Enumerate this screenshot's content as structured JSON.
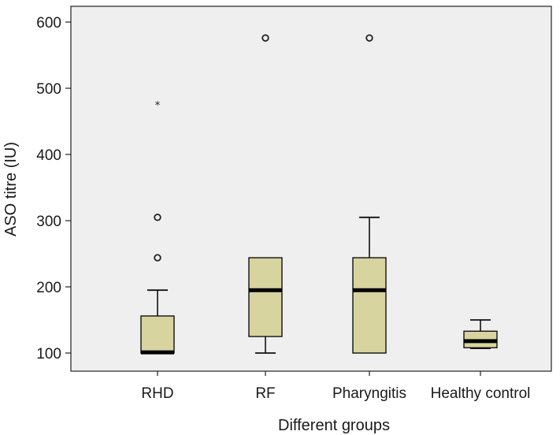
{
  "chart_data": {
    "type": "boxplot",
    "xlabel": "Different groups",
    "ylabel": "ASO titre (IU)",
    "ylim": [
      88,
      620
    ],
    "yticks": [
      100,
      200,
      300,
      400,
      500,
      600
    ],
    "grid": false,
    "colors": {
      "box_fill": "#d8d4a0",
      "plot_bg": "#efefef",
      "line": "#111111"
    },
    "groups": [
      {
        "name": "RHD",
        "whisker_low": 100,
        "q1": 100,
        "median": 101,
        "q3": 156,
        "whisker_high": 195,
        "outliers": [
          244,
          305
        ],
        "extremes": [
          476
        ]
      },
      {
        "name": "RF",
        "whisker_low": 100,
        "q1": 125,
        "median": 195,
        "q3": 244,
        "whisker_high": 244,
        "outliers": [
          576
        ],
        "extremes": []
      },
      {
        "name": "Pharyngitis",
        "whisker_low": 100,
        "q1": 100,
        "median": 195,
        "q3": 244,
        "whisker_high": 305,
        "outliers": [
          576
        ],
        "extremes": []
      },
      {
        "name": "Healthy control",
        "whisker_low": 107,
        "q1": 108,
        "median": 118,
        "q3": 133,
        "whisker_high": 150,
        "outliers": [],
        "extremes": []
      }
    ]
  }
}
